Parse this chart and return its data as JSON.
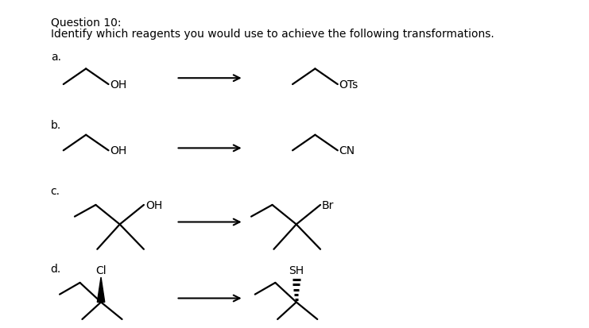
{
  "title": "Question 10:",
  "subtitle": "Identify which reagents you would use to achieve the following transformations.",
  "background_color": "#ffffff",
  "text_color": "#000000",
  "font_size_title": 10,
  "font_size_body": 10,
  "font_size_label": 10,
  "font_size_chem": 10,
  "sections": [
    "a.",
    "b.",
    "c.",
    "d."
  ],
  "fig_width": 7.41,
  "fig_height": 4.14
}
